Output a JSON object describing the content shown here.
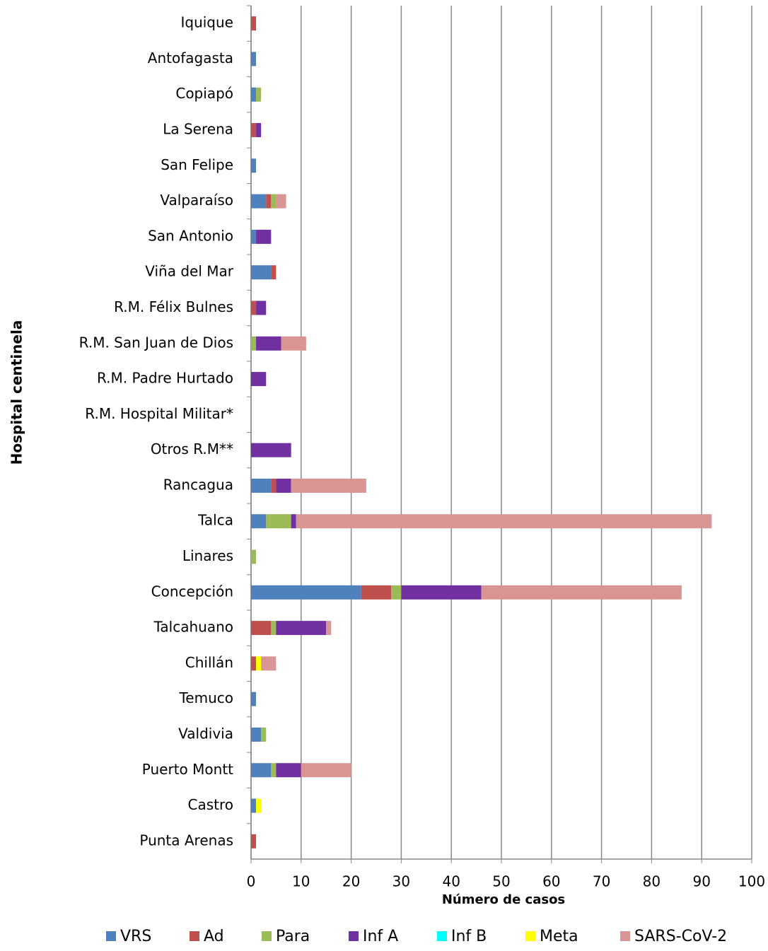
{
  "chart_data": {
    "type": "stacked-bar-horizontal",
    "x_label": "Número de casos",
    "y_label": "Hospital centinela",
    "categories": [
      "Iquique",
      "Antofagasta",
      "Copiapó",
      "La Serena",
      "San Felipe",
      "Valparaíso",
      "San Antonio",
      "Viña del Mar",
      "R.M. Félix Bulnes",
      "R.M. San Juan de Dios",
      "R.M. Padre Hurtado",
      "R.M. Hospital Militar*",
      "Otros R.M**",
      "Rancagua",
      "Talca",
      "Linares",
      "Concepción",
      "Talcahuano",
      "Chillán",
      "Temuco",
      "Valdivia",
      "Puerto Montt",
      "Castro",
      "Punta Arenas"
    ],
    "series": [
      {
        "name": "VRS",
        "color": "#4f81bd",
        "values": [
          0,
          1,
          1,
          0,
          1,
          3,
          1,
          4,
          0,
          0,
          0,
          0,
          0,
          4,
          3,
          0,
          22,
          0,
          0,
          1,
          2,
          4,
          1,
          0
        ]
      },
      {
        "name": "Ad",
        "color": "#c0504d",
        "values": [
          1,
          0,
          0,
          1,
          0,
          1,
          0,
          1,
          1,
          0,
          0,
          0,
          0,
          1,
          0,
          0,
          6,
          4,
          1,
          0,
          0,
          0,
          0,
          1
        ]
      },
      {
        "name": "Para",
        "color": "#9bbb59",
        "values": [
          0,
          0,
          1,
          0,
          0,
          1,
          0,
          0,
          0,
          1,
          0,
          0,
          0,
          0,
          5,
          1,
          2,
          1,
          0,
          0,
          1,
          1,
          0,
          0
        ]
      },
      {
        "name": "Inf A",
        "color": "#7030a0",
        "values": [
          0,
          0,
          0,
          1,
          0,
          0,
          3,
          0,
          2,
          5,
          3,
          0,
          8,
          3,
          1,
          0,
          16,
          10,
          0,
          0,
          0,
          5,
          0,
          0
        ]
      },
      {
        "name": "Inf B",
        "color": "#00ffff",
        "values": [
          0,
          0,
          0,
          0,
          0,
          0,
          0,
          0,
          0,
          0,
          0,
          0,
          0,
          0,
          0,
          0,
          0,
          0,
          0,
          0,
          0,
          0,
          0,
          0
        ]
      },
      {
        "name": "Meta",
        "color": "#ffff00",
        "values": [
          0,
          0,
          0,
          0,
          0,
          0,
          0,
          0,
          0,
          0,
          0,
          0,
          0,
          0,
          0,
          0,
          0,
          0,
          1,
          0,
          0,
          0,
          1,
          0
        ]
      },
      {
        "name": "SARS-CoV-2",
        "color": "#d99594",
        "values": [
          0,
          0,
          0,
          0,
          0,
          2,
          0,
          0,
          0,
          5,
          0,
          0,
          0,
          15,
          83,
          0,
          40,
          1,
          3,
          0,
          0,
          10,
          0,
          0
        ]
      }
    ],
    "xlim": [
      0,
      100
    ],
    "xticks": [
      0,
      10,
      20,
      30,
      40,
      50,
      60,
      70,
      80,
      90,
      100
    ],
    "grid": true
  }
}
